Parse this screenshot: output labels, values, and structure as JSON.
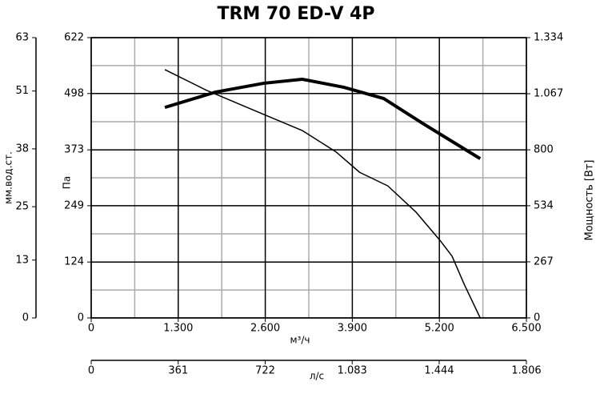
{
  "chart_data": {
    "type": "line",
    "title": "TRM 70 ED-V 4P",
    "xlabel": "м³/ч",
    "xlim": [
      0,
      6500
    ],
    "xticks": [
      0,
      {
        "value": 1300,
        "label": "1.300"
      },
      {
        "value": 2600,
        "label": "2.600"
      },
      {
        "value": 3900,
        "label": "3.900"
      },
      {
        "value": 5200,
        "label": "5.200"
      },
      {
        "value": 6500,
        "label": "6.500"
      }
    ],
    "x2label": "л/с",
    "x2lim": [
      0,
      1806
    ],
    "x2ticks": [
      0,
      361,
      722,
      {
        "value": 1083,
        "label": "1.083"
      },
      {
        "value": 1444,
        "label": "1.444"
      },
      {
        "value": 1806,
        "label": "1.806"
      }
    ],
    "ylabel": "Па",
    "ylim": [
      0,
      622
    ],
    "yticks": [
      0,
      124,
      249,
      373,
      498,
      622
    ],
    "y2label": "Мощность [Вт]",
    "y2lim": [
      0,
      1334
    ],
    "y2ticks": [
      0,
      267,
      534,
      800,
      {
        "value": 1067,
        "label": "1.067"
      },
      {
        "value": 1334,
        "label": "1.334"
      }
    ],
    "y3label": "мм.вод.ст.",
    "y3lim": [
      0,
      63
    ],
    "y3ticks": [
      0,
      13,
      25,
      38,
      51,
      63
    ],
    "grid": true,
    "series": [
      {
        "color": "#000000",
        "linewidth": 1.5,
        "x": [
          1100,
          1710,
          2220,
          2700,
          3150,
          3660,
          4010,
          4430,
          4850,
          5210,
          5390,
          5570,
          5810
        ],
        "values": [
          551,
          506,
          474,
          444,
          416,
          368,
          323,
          293,
          235,
          172,
          137,
          75,
          0
        ]
      },
      {
        "color": "#000000",
        "linewidth": 4,
        "axis": "y2",
        "x": [
          1100,
          1860,
          2580,
          3150,
          3770,
          4370,
          4970,
          5810
        ],
        "values": [
          1002,
          1075,
          1117,
          1136,
          1098,
          1044,
          922,
          758
        ]
      }
    ]
  }
}
